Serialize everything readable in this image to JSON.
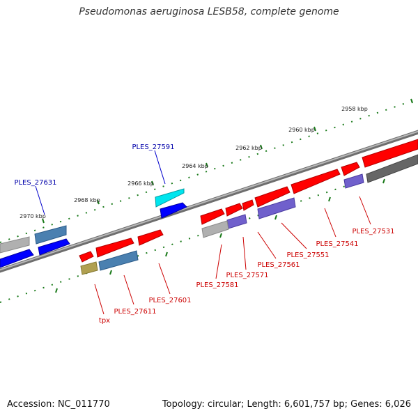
{
  "title": "Pseudomonas aeruginosa LESB58, complete genome",
  "footer": {
    "accession": "Accession: NC_011770",
    "topology": "Topology: circular; Length: 6,601,757 bp; Genes: 6,026"
  },
  "ticks": [
    "2958 kbp",
    "2960 kbp",
    "2962 kbp",
    "2964 kbp",
    "2966 kbp",
    "2968 kbp",
    "2970 kbp"
  ],
  "genes": [
    {
      "label": "PLES_27591",
      "color": "#0000aa"
    },
    {
      "label": "PLES_27631",
      "color": "#0000aa"
    },
    {
      "label": "PLES_27531",
      "color": "#cc0000"
    },
    {
      "label": "PLES_27541",
      "color": "#cc0000"
    },
    {
      "label": "PLES_27551",
      "color": "#cc0000"
    },
    {
      "label": "PLES_27561",
      "color": "#cc0000"
    },
    {
      "label": "PLES_27571",
      "color": "#cc0000"
    },
    {
      "label": "PLES_27581",
      "color": "#cc0000"
    },
    {
      "label": "PLES_27601",
      "color": "#cc0000"
    },
    {
      "label": "PLES_27611",
      "color": "#cc0000"
    },
    {
      "label": "tpx",
      "color": "#cc0000"
    }
  ],
  "colors": {
    "backbone": "#808080",
    "tick": "#1a7a1a",
    "forward_red": "#ff0000",
    "reverse_blue": "#0000ff",
    "cyan": "#00e5ee",
    "steel": "#4a80b0",
    "violet": "#7060cc",
    "gray": "#b0b0b0",
    "darkgray": "#666666",
    "olive": "#b0a050"
  }
}
